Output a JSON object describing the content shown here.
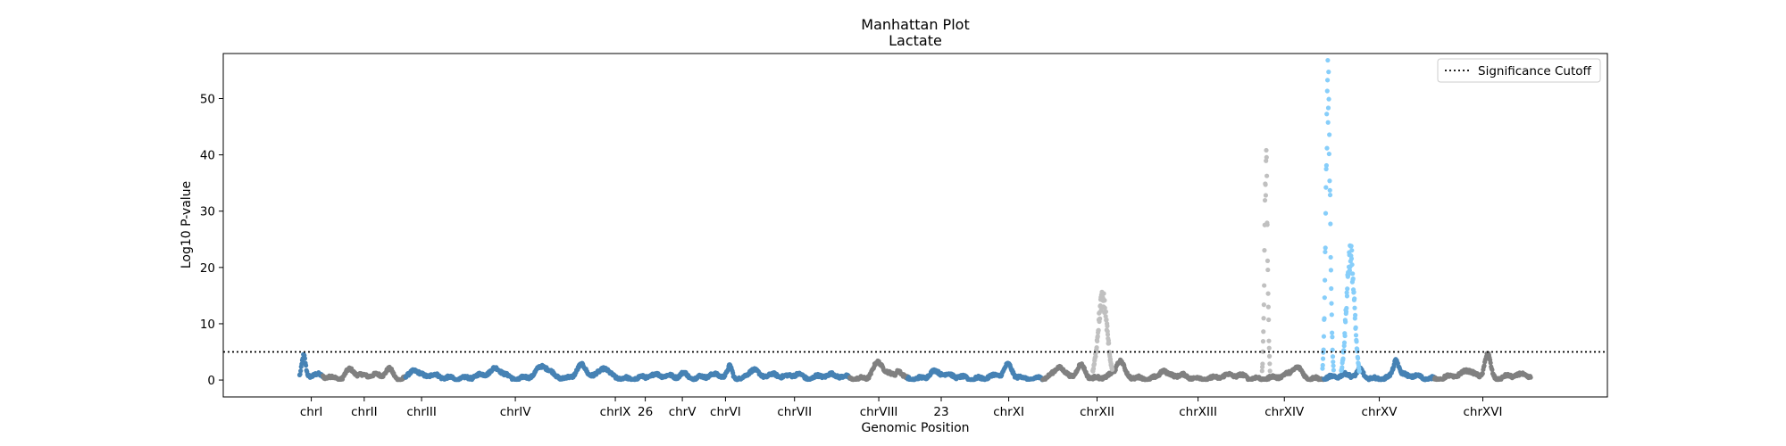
{
  "chart_data": {
    "type": "scatter",
    "title": "Manhattan Plot",
    "subtitle": "Lactate",
    "xlabel": "Genomic Position",
    "ylabel": "Log10 P-value",
    "ylim": [
      -3,
      58
    ],
    "yticks": [
      0,
      10,
      20,
      30,
      40,
      50
    ],
    "grid": false,
    "legend_position": "top-right",
    "significance_cutoff": 5,
    "legend": [
      {
        "label": "Significance Cutoff",
        "style": "dotted",
        "color": "#000000"
      }
    ],
    "colors": {
      "steelblue": "#4682b4",
      "gray": "#808080",
      "lightgray": "#c0c0c0",
      "lightblue": "#87cefa"
    },
    "chromosomes": [
      {
        "label": "chrI",
        "x_start": 0,
        "x_end": 230000,
        "color": "#4682b4",
        "peaks": [
          {
            "pos": 40000,
            "height": 3.5,
            "width": 25000
          }
        ]
      },
      {
        "label": "chrII",
        "x_start": 230000,
        "x_end": 1043000,
        "color": "#808080",
        "peaks": [
          {
            "pos": 500000,
            "height": 1.6,
            "width": 60000
          },
          {
            "pos": 880000,
            "height": 1.5,
            "width": 50000
          }
        ]
      },
      {
        "label": "chrIII",
        "x_start": 1043000,
        "x_end": 1360000,
        "color": "#4682b4",
        "peaks": [
          {
            "pos": 1120000,
            "height": 1.4,
            "width": 50000
          }
        ]
      },
      {
        "label": "chrIV",
        "x_start": 1360000,
        "x_end": 2890000,
        "color": "#4682b4",
        "peaks": [
          {
            "pos": 1950000,
            "height": 1.3,
            "width": 90000
          },
          {
            "pos": 2400000,
            "height": 1.6,
            "width": 80000
          },
          {
            "pos": 2770000,
            "height": 2.2,
            "width": 70000
          }
        ]
      },
      {
        "label": "chrIX",
        "x_start": 2890000,
        "x_end": 3330000,
        "color": "#4682b4",
        "peaks": [
          {
            "pos": 3000000,
            "height": 1.4,
            "width": 50000
          }
        ]
      },
      {
        "label": "26",
        "x_start": 3330000,
        "x_end": 3480000,
        "color": "#4682b4",
        "peaks": []
      },
      {
        "label": "chrV",
        "x_start": 3480000,
        "x_end": 4060000,
        "color": "#4682b4",
        "peaks": [
          {
            "pos": 3780000,
            "height": 0.9,
            "width": 60000
          }
        ]
      },
      {
        "label": "chrVI",
        "x_start": 4060000,
        "x_end": 4330000,
        "color": "#4682b4",
        "peaks": [
          {
            "pos": 4240000,
            "height": 1.8,
            "width": 30000
          }
        ]
      },
      {
        "label": "chrVII",
        "x_start": 4330000,
        "x_end": 5420000,
        "color": "#4682b4",
        "peaks": [
          {
            "pos": 4460000,
            "height": 1.6,
            "width": 60000
          },
          {
            "pos": 4900000,
            "height": 0.9,
            "width": 60000
          }
        ]
      },
      {
        "label": "chrVIII",
        "x_start": 5420000,
        "x_end": 5990000,
        "color": "#808080",
        "peaks": [
          {
            "pos": 5700000,
            "height": 2.4,
            "width": 70000
          },
          {
            "pos": 5900000,
            "height": 1.2,
            "width": 30000
          }
        ]
      },
      {
        "label": "23",
        "x_start": 5990000,
        "x_end": 6650000,
        "color": "#4682b4",
        "peaks": [
          {
            "pos": 6250000,
            "height": 0.8,
            "width": 80000
          }
        ]
      },
      {
        "label": "chrXI",
        "x_start": 6650000,
        "x_end": 7320000,
        "color": "#4682b4",
        "peaks": [
          {
            "pos": 6980000,
            "height": 1.8,
            "width": 50000
          }
        ]
      },
      {
        "label": "chrXII",
        "x_start": 7320000,
        "x_end": 8390000,
        "color": "#808080",
        "peaks": [
          {
            "pos": 7480000,
            "height": 1.6,
            "width": 50000
          },
          {
            "pos": 7700000,
            "height": 2.2,
            "width": 60000
          },
          {
            "pos": 8080000,
            "height": 2.6,
            "width": 50000
          }
        ]
      },
      {
        "label": "chrXIII",
        "x_start": 8390000,
        "x_end": 9310000,
        "color": "#808080",
        "peaks": [
          {
            "pos": 8500000,
            "height": 1.2,
            "width": 40000
          }
        ]
      },
      {
        "label": "chrXIV",
        "x_start": 9310000,
        "x_end": 10090000,
        "color": "#808080",
        "peaks": [
          {
            "pos": 9820000,
            "height": 1.5,
            "width": 60000
          }
        ]
      },
      {
        "label": "chrXV",
        "x_start": 10090000,
        "x_end": 11180000,
        "color": "#4682b4",
        "peaks": [
          {
            "pos": 10450000,
            "height": 1.2,
            "width": 40000
          },
          {
            "pos": 10800000,
            "height": 3.0,
            "width": 35000
          }
        ]
      },
      {
        "label": "chrXVI",
        "x_start": 11180000,
        "x_end": 12130000,
        "color": "#808080",
        "peaks": [
          {
            "pos": 11520000,
            "height": 1.0,
            "width": 60000
          },
          {
            "pos": 11700000,
            "height": 4.6,
            "width": 40000
          }
        ]
      }
    ],
    "highlights": [
      {
        "x_start": 7750000,
        "x_end": 8020000,
        "color": "#c0c0c0",
        "peak_pos": 7910000,
        "height": 15.5,
        "width": 65000
      },
      {
        "x_start": 9470000,
        "x_end": 9580000,
        "color": "#c0c0c0",
        "peak_pos": 9520000,
        "height": 40,
        "width": 22000
      },
      {
        "x_start": 9990000,
        "x_end": 10560000,
        "color": "#87cefa",
        "peak_pos": 10130000,
        "height": 55,
        "width": 30000
      },
      {
        "x_start": 9990000,
        "x_end": 10560000,
        "color": "#87cefa",
        "peak_pos": 10350000,
        "height": 24,
        "width": 55000
      }
    ]
  }
}
